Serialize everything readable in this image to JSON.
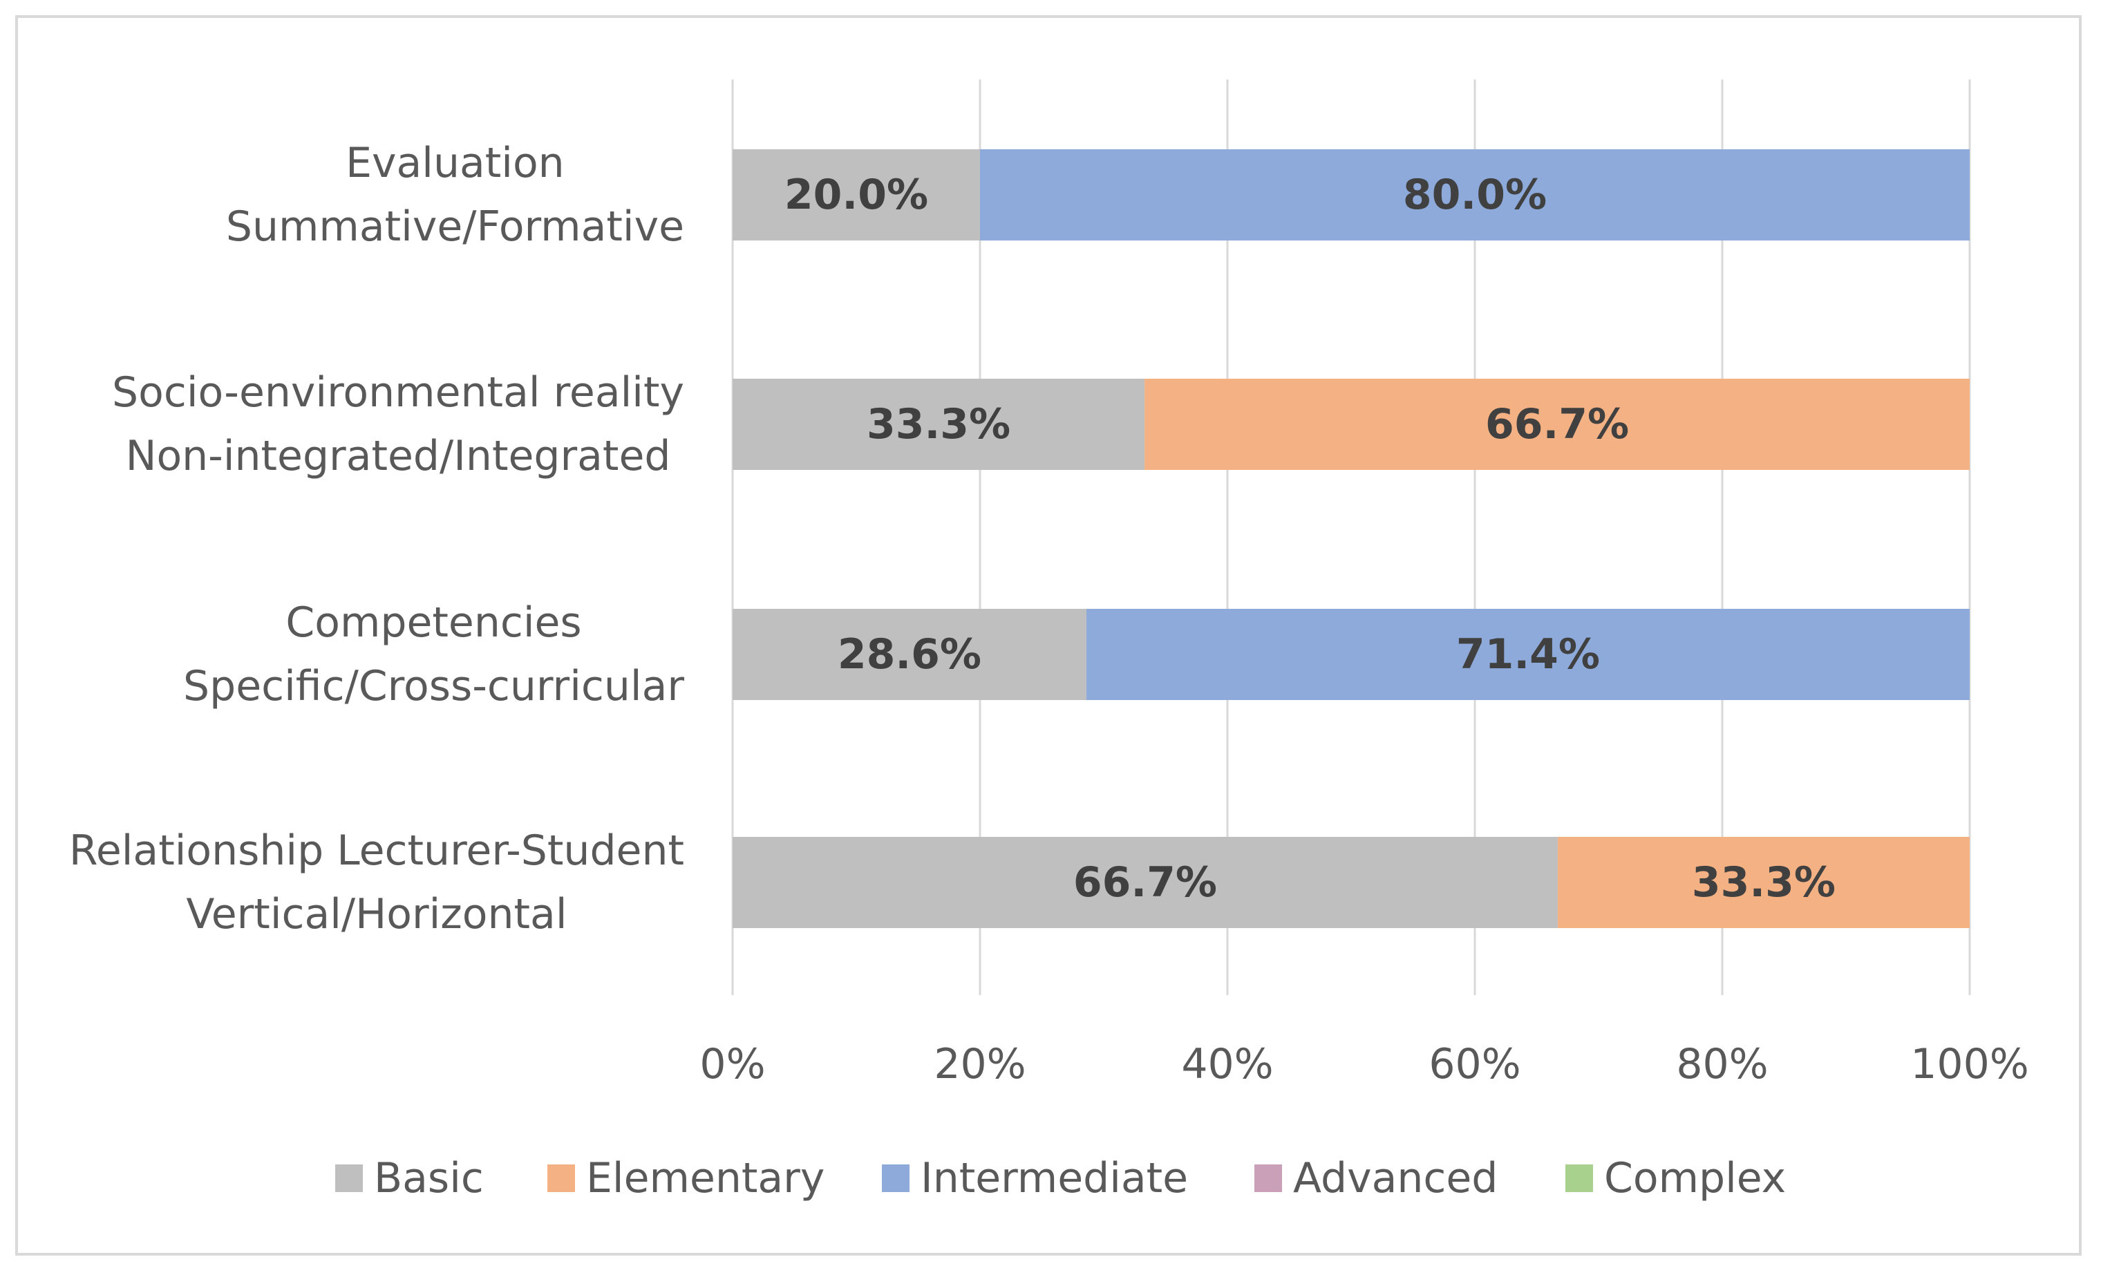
{
  "chart_data": {
    "type": "bar",
    "orientation": "horizontal",
    "stacked": true,
    "percent": true,
    "title": "",
    "xlabel": "",
    "ylabel": "",
    "xlim": [
      0,
      100
    ],
    "ticks": [
      "0%",
      "20%",
      "40%",
      "60%",
      "80%",
      "100%"
    ],
    "grid": true,
    "legend_position": "bottom",
    "categories": [
      {
        "line1": "Evaluation",
        "line2": "Summative/Formative"
      },
      {
        "line1": "Socio-environmental reality",
        "line2": "Non-integrated/Integrated"
      },
      {
        "line1": "Competencies",
        "line2": "Specific/Cross-curricular"
      },
      {
        "line1": "Relationship Lecturer-Student",
        "line2": "Vertical/Horizontal"
      }
    ],
    "series": [
      {
        "name": "Basic",
        "color": "#bfbfbf",
        "values": [
          20.0,
          33.3,
          28.6,
          66.7
        ],
        "labels": [
          "20.0%",
          "33.3%",
          "28.6%",
          "66.7%"
        ]
      },
      {
        "name": "Elementary",
        "color": "#f4b183",
        "values": [
          0,
          66.7,
          0,
          33.3
        ],
        "labels": [
          "",
          "66.7%",
          "",
          "33.3%"
        ]
      },
      {
        "name": "Intermediate",
        "color": "#8eaadb",
        "values": [
          80.0,
          0,
          71.4,
          0
        ],
        "labels": [
          "80.0%",
          "",
          "71.4%",
          ""
        ]
      },
      {
        "name": "Advanced",
        "color": "#c9a0b8",
        "values": [
          0,
          0,
          0,
          0
        ],
        "labels": [
          "",
          "",
          "",
          ""
        ]
      },
      {
        "name": "Complex",
        "color": "#a9d18e",
        "values": [
          0,
          0,
          0,
          0
        ],
        "labels": [
          "",
          "",
          "",
          ""
        ]
      }
    ]
  }
}
